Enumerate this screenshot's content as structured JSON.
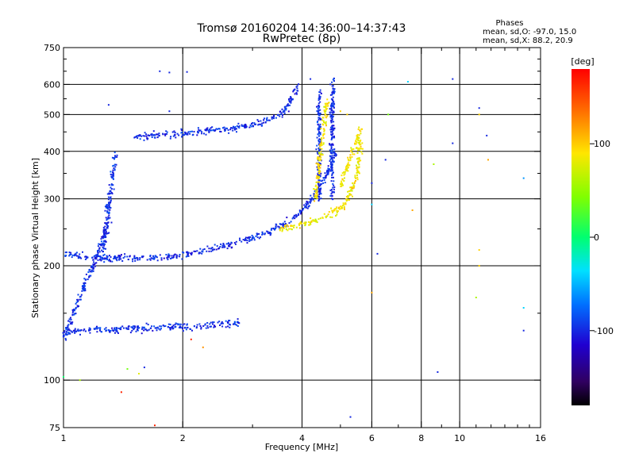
{
  "chart_data": {
    "type": "scatter",
    "title": "Tromsø 20160204 14:36:00–14:37:43",
    "subtitle": "RwPretec (8p)",
    "xlabel": "Frequency [MHz]",
    "ylabel": "Stationary phase Virtual Height [km]",
    "x_scale": "log",
    "y_scale": "log",
    "xlim": [
      1,
      16
    ],
    "ylim": [
      75,
      750
    ],
    "x_ticks": [
      1,
      2,
      4,
      6,
      8,
      10,
      16
    ],
    "x_tick_labels": [
      "1",
      "2",
      "4",
      "6",
      "8",
      "10",
      "16"
    ],
    "x_minor_ticks": [
      3,
      5,
      7,
      9,
      11,
      12,
      13,
      14,
      15
    ],
    "y_ticks": [
      75,
      100,
      200,
      300,
      400,
      500,
      600,
      750
    ],
    "y_tick_labels": [
      "75",
      "100",
      "200",
      "300",
      "400",
      "500",
      "600",
      "750"
    ],
    "y_minor_ticks": [
      150,
      250,
      350,
      450,
      550,
      650,
      700
    ],
    "grid": true,
    "stats": {
      "heading": "Phases",
      "line_o": "mean, sd,O: -97.0, 15.0",
      "line_x": "mean, sd,X:  88.2, 20.9"
    },
    "colorbar": {
      "unit_label": "[deg]",
      "range": [
        -180,
        180
      ],
      "ticks": [
        100,
        0,
        -100
      ],
      "tick_labels": [
        "100",
        "0",
        "-100"
      ]
    },
    "series": [
      {
        "phase_mean": -97,
        "phase_sd": 15,
        "traces": [
          {
            "f": [
              1.0,
              1.3
            ],
            "h": [
              215,
              210
            ]
          },
          {
            "f": [
              1.3,
              1.8,
              2.2,
              2.6,
              3.0,
              3.4,
              3.8,
              4.1,
              4.5,
              4.8
            ],
            "h": [
              210,
              212,
              218,
              228,
              238,
              250,
              268,
              290,
              330,
              400
            ]
          },
          {
            "f": [
              1.5,
              1.9,
              2.3,
              2.8,
              3.2,
              3.6,
              3.9
            ],
            "h": [
              440,
              445,
              455,
              465,
              480,
              510,
              600
            ]
          },
          {
            "f": [
              1.0,
              1.4,
              1.8,
              2.3,
              2.8
            ],
            "h": [
              135,
              137,
              138,
              140,
              142
            ]
          },
          {
            "f": [
              4.4,
              4.4
            ],
            "h": [
              300,
              580
            ]
          },
          {
            "f": [
              4.75,
              4.75
            ],
            "h": [
              300,
              620
            ]
          },
          {
            "f": [
              1.0,
              1.3
            ],
            "h": [
              130,
              260
            ]
          },
          {
            "f": [
              1.25,
              1.35
            ],
            "h": [
              220,
              400
            ]
          }
        ]
      },
      {
        "phase_mean": 88.2,
        "phase_sd": 20.9,
        "traces": [
          {
            "f": [
              3.5,
              4.0,
              4.5,
              5.0,
              5.3,
              5.5,
              5.6
            ],
            "h": [
              250,
              258,
              268,
              285,
              310,
              350,
              430
            ]
          },
          {
            "f": [
              4.3,
              4.6
            ],
            "h": [
              300,
              540
            ]
          },
          {
            "f": [
              5.0,
              5.6
            ],
            "h": [
              330,
              460
            ]
          }
        ]
      }
    ],
    "scattered_points": [
      {
        "f": 1.75,
        "h": 650,
        "phase": -100
      },
      {
        "f": 1.85,
        "h": 645,
        "phase": -100
      },
      {
        "f": 2.05,
        "h": 647,
        "phase": -100
      },
      {
        "f": 1.85,
        "h": 510,
        "phase": -100
      },
      {
        "f": 1.3,
        "h": 530,
        "phase": -100
      },
      {
        "f": 4.2,
        "h": 620,
        "phase": -100
      },
      {
        "f": 5.0,
        "h": 510,
        "phase": 100
      },
      {
        "f": 5.2,
        "h": 500,
        "phase": 100
      },
      {
        "f": 6.5,
        "h": 380,
        "phase": -100
      },
      {
        "f": 6.0,
        "h": 330,
        "phase": -100
      },
      {
        "f": 6.6,
        "h": 500,
        "phase": 40
      },
      {
        "f": 7.4,
        "h": 610,
        "phase": -40
      },
      {
        "f": 9.6,
        "h": 620,
        "phase": -100
      },
      {
        "f": 11.2,
        "h": 520,
        "phase": -100
      },
      {
        "f": 11.2,
        "h": 500,
        "phase": 100
      },
      {
        "f": 11.7,
        "h": 440,
        "phase": -100
      },
      {
        "f": 11.8,
        "h": 380,
        "phase": 120
      },
      {
        "f": 9.6,
        "h": 420,
        "phase": -100
      },
      {
        "f": 8.6,
        "h": 370,
        "phase": 60
      },
      {
        "f": 7.6,
        "h": 280,
        "phase": 120
      },
      {
        "f": 11.2,
        "h": 220,
        "phase": 100
      },
      {
        "f": 11.2,
        "h": 200,
        "phase": 100
      },
      {
        "f": 6.2,
        "h": 215,
        "phase": -100
      },
      {
        "f": 6.0,
        "h": 170,
        "phase": 120
      },
      {
        "f": 6.0,
        "h": 290,
        "phase": -40
      },
      {
        "f": 11.0,
        "h": 165,
        "phase": 60
      },
      {
        "f": 14.5,
        "h": 340,
        "phase": -60
      },
      {
        "f": 14.5,
        "h": 155,
        "phase": -40
      },
      {
        "f": 14.5,
        "h": 135,
        "phase": -100
      },
      {
        "f": 8.8,
        "h": 105,
        "phase": -100
      },
      {
        "f": 5.3,
        "h": 80,
        "phase": -100
      },
      {
        "f": 1.0,
        "h": 102,
        "phase": 0
      },
      {
        "f": 1.1,
        "h": 100,
        "phase": 60
      },
      {
        "f": 1.4,
        "h": 93,
        "phase": 170
      },
      {
        "f": 1.7,
        "h": 76,
        "phase": 170
      },
      {
        "f": 1.6,
        "h": 108,
        "phase": -100
      },
      {
        "f": 1.55,
        "h": 104,
        "phase": 80
      },
      {
        "f": 1.45,
        "h": 107,
        "phase": 40
      },
      {
        "f": 2.1,
        "h": 128,
        "phase": 170
      },
      {
        "f": 2.25,
        "h": 122,
        "phase": 130
      }
    ]
  }
}
